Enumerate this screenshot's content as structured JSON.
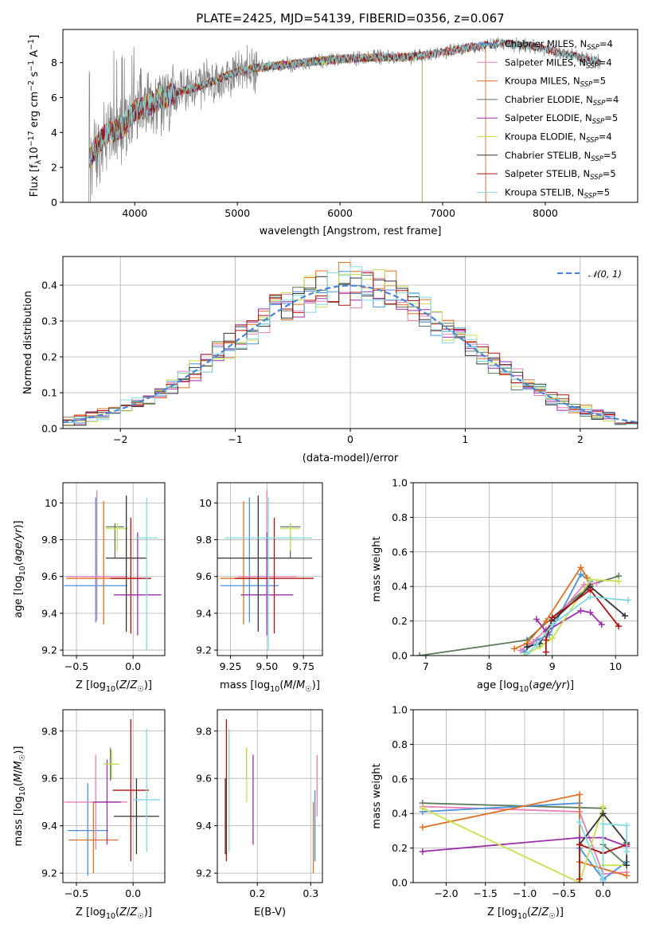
{
  "title": "PLATE=2425, MJD=54139, FIBERID=0356, z=0.067",
  "colors": {
    "chabrier_miles": "#4a90d9",
    "salpeter_miles": "#e87fb7",
    "kroupa_miles": "#e07020",
    "chabrier_elodie": "#5a7a5a",
    "salpeter_elodie": "#9a2fa8",
    "kroupa_elodie": "#c8e050",
    "chabrier_stelib": "#333333",
    "salpeter_stelib": "#b01010",
    "kroupa_stelib": "#80d8e0",
    "data": "#808080",
    "normal": "#4a86d8"
  },
  "chart_data": [
    {
      "id": "spectrum",
      "type": "line",
      "xlabel": "wavelength [Angstrom, rest frame]",
      "ylabel": "Flux [fλ10⁻¹⁷ erg cm⁻² s⁻¹ A⁻¹]",
      "xlim": [
        3300,
        8900
      ],
      "ylim": [
        0,
        9.9
      ],
      "xticks": [
        4000,
        5000,
        6000,
        7000,
        8000
      ],
      "yticks": [
        0,
        2,
        4,
        6,
        8
      ],
      "legend": [
        "Chabrier MILES, N_SSP=4",
        "Salpeter MILES, N_SSP=4",
        "Kroupa MILES, N_SSP=5",
        "Chabrier ELODIE, N_SSP=4",
        "Salpeter ELODIE, N_SSP=5",
        "Kroupa ELODIE, N_SSP=4",
        "Chabrier STELIB, N_SSP=5",
        "Salpeter STELIB, N_SSP=5",
        "Kroupa STELIB, N_SSP=5"
      ],
      "legend_position": "right",
      "continuum": [
        [
          3560,
          2.6
        ],
        [
          3700,
          3.8
        ],
        [
          3900,
          4.4
        ],
        [
          4000,
          5.2
        ],
        [
          4200,
          5.8
        ],
        [
          4400,
          6.3
        ],
        [
          4600,
          6.6
        ],
        [
          4800,
          7.0
        ],
        [
          5000,
          7.5
        ],
        [
          5200,
          7.7
        ],
        [
          5500,
          7.9
        ],
        [
          5800,
          8.1
        ],
        [
          6000,
          8.2
        ],
        [
          6300,
          8.3
        ],
        [
          6600,
          8.3
        ],
        [
          6800,
          8.4
        ],
        [
          7000,
          8.6
        ],
        [
          7200,
          8.8
        ],
        [
          7400,
          9.0
        ],
        [
          7600,
          9.1
        ],
        [
          7800,
          9.0
        ],
        [
          8000,
          8.8
        ],
        [
          8200,
          8.5
        ],
        [
          8400,
          8.2
        ],
        [
          8540,
          8.0
        ]
      ],
      "data_range": [
        3550,
        8540
      ],
      "model_range": [
        3560,
        7420
      ],
      "elodie_cutoff": 6800,
      "miles_cutoff": 7420
    },
    {
      "id": "residuals",
      "type": "line",
      "xlabel": "(data-model)/error",
      "ylabel": "Normed distribution",
      "xlim": [
        -2.5,
        2.5
      ],
      "ylim": [
        0,
        0.48
      ],
      "xticks": [
        -2,
        -1,
        0,
        1,
        2
      ],
      "xtick_labels": [
        "−2",
        "−1",
        "0",
        "1",
        "2"
      ],
      "yticks": [
        0,
        0.1,
        0.2,
        0.3,
        0.4
      ],
      "ytick_labels": [
        "0.0",
        "0.1",
        "0.2",
        "0.3",
        "0.4"
      ],
      "grid": true,
      "series": [
        {
          "name": "𝒩(0, 1)",
          "mean": 0,
          "sigma": 1
        }
      ],
      "bin_width": 0.1,
      "legend_position": "top-right"
    },
    {
      "id": "age_vs_Z",
      "type": "scatter",
      "xlabel": "Z [log10(Z/Z☉)]",
      "ylabel": "age [log10(age/yr)]",
      "xlim": [
        -0.62,
        0.28
      ],
      "ylim": [
        9.17,
        10.11
      ],
      "xticks": [
        -0.5,
        0.0
      ],
      "xtick_labels": [
        "−0.5",
        "0.0"
      ],
      "yticks": [
        9.2,
        9.4,
        9.6,
        9.8,
        10.0
      ],
      "grid": true,
      "points": [
        {
          "model": "chabrier_miles",
          "x": -0.33,
          "xerr": 0.28,
          "y": 9.55,
          "ylo": 9.35,
          "yhi": 10.03
        },
        {
          "model": "salpeter_miles",
          "x": -0.32,
          "xerr": 0.27,
          "y": 9.6,
          "ylo": 9.36,
          "yhi": 10.07
        },
        {
          "model": "kroupa_miles",
          "x": -0.26,
          "xerr": 0.33,
          "y": 9.59,
          "ylo": 9.34,
          "yhi": 10.01
        },
        {
          "model": "chabrier_elodie",
          "x": -0.16,
          "xerr": 0.08,
          "y": 9.87,
          "ylo": 9.7,
          "yhi": 9.89
        },
        {
          "model": "salpeter_elodie",
          "x": 0.04,
          "xerr": 0.21,
          "y": 9.5,
          "ylo": 9.28,
          "yhi": 9.84
        },
        {
          "model": "kroupa_elodie",
          "x": -0.14,
          "xerr": 0.1,
          "y": 9.86,
          "ylo": 9.74,
          "yhi": 9.89
        },
        {
          "model": "chabrier_stelib",
          "x": -0.06,
          "xerr": 0.18,
          "y": 9.7,
          "ylo": 9.3,
          "yhi": 10.04
        },
        {
          "model": "salpeter_stelib",
          "x": -0.02,
          "xerr": 0.18,
          "y": 9.59,
          "ylo": 9.29,
          "yhi": 9.92
        },
        {
          "model": "kroupa_stelib",
          "x": 0.12,
          "xerr": 0.1,
          "y": 9.81,
          "ylo": 9.2,
          "yhi": 10.03
        }
      ]
    },
    {
      "id": "age_vs_mass",
      "type": "scatter",
      "xlabel": "mass [log10(M/M☉)]",
      "ylabel": "",
      "xlim": [
        9.16,
        9.88
      ],
      "ylim": [
        9.17,
        10.11
      ],
      "xticks": [
        9.25,
        9.5,
        9.75
      ],
      "xtick_labels": [
        "9.25",
        "9.50",
        "9.75"
      ],
      "yticks": [
        9.2,
        9.4,
        9.6,
        9.8,
        10.0
      ],
      "grid": true,
      "points": [
        {
          "model": "chabrier_miles",
          "x": 9.38,
          "xerr": 0.2,
          "y": 9.55,
          "ylo": 9.35,
          "yhi": 10.03
        },
        {
          "model": "salpeter_miles",
          "x": 9.5,
          "xerr": 0.2,
          "y": 9.6,
          "ylo": 9.36,
          "yhi": 10.07
        },
        {
          "model": "kroupa_miles",
          "x": 9.34,
          "xerr": 0.16,
          "y": 9.59,
          "ylo": 9.34,
          "yhi": 10.01
        },
        {
          "model": "chabrier_elodie",
          "x": 9.66,
          "xerr": 0.07,
          "y": 9.87,
          "ylo": 9.7,
          "yhi": 9.89
        },
        {
          "model": "salpeter_elodie",
          "x": 9.5,
          "xerr": 0.18,
          "y": 9.5,
          "ylo": 9.28,
          "yhi": 9.84
        },
        {
          "model": "kroupa_elodie",
          "x": 9.66,
          "xerr": 0.07,
          "y": 9.86,
          "ylo": 9.74,
          "yhi": 9.89
        },
        {
          "model": "chabrier_stelib",
          "x": 9.44,
          "xerr": 0.37,
          "y": 9.7,
          "ylo": 9.3,
          "yhi": 10.04
        },
        {
          "model": "salpeter_stelib",
          "x": 9.55,
          "xerr": 0.27,
          "y": 9.59,
          "ylo": 9.29,
          "yhi": 9.92
        },
        {
          "model": "kroupa_stelib",
          "x": 9.51,
          "xerr": 0.3,
          "y": 9.81,
          "ylo": 9.2,
          "yhi": 10.03
        }
      ]
    },
    {
      "id": "weight_vs_age",
      "type": "line",
      "xlabel": "age [log10(age/yr)]",
      "ylabel": "mass weight",
      "xlim": [
        6.8,
        10.35
      ],
      "ylim": [
        0,
        1
      ],
      "xticks": [
        7,
        8,
        9,
        10
      ],
      "yticks": [
        0,
        0.2,
        0.4,
        0.6,
        0.8,
        1.0
      ],
      "ytick_labels": [
        "0.0",
        "0.2",
        "0.4",
        "0.6",
        "0.8",
        "1.0"
      ],
      "grid": true,
      "series": [
        {
          "model": "chabrier_elodie",
          "x": [
            6.9,
            8.6,
            9.0,
            9.6,
            10.05
          ],
          "y": [
            0.0,
            0.09,
            0.22,
            0.41,
            0.46
          ]
        },
        {
          "model": "chabrier_miles",
          "x": [
            8.55,
            8.75,
            8.95,
            9.45,
            9.6
          ],
          "y": [
            0.02,
            0.09,
            0.12,
            0.47,
            0.43
          ]
        },
        {
          "model": "salpeter_miles",
          "x": [
            8.5,
            8.7,
            8.9,
            9.5,
            9.7
          ],
          "y": [
            0.03,
            0.08,
            0.15,
            0.41,
            0.42
          ]
        },
        {
          "model": "kroupa_miles",
          "x": [
            8.4,
            8.6,
            8.9,
            9.45,
            9.55
          ],
          "y": [
            0.04,
            0.07,
            0.2,
            0.51,
            0.45
          ]
        },
        {
          "model": "salpeter_elodie",
          "x": [
            8.75,
            8.9,
            9.45,
            9.6,
            9.78
          ],
          "y": [
            0.21,
            0.14,
            0.26,
            0.25,
            0.18
          ]
        },
        {
          "model": "kroupa_elodie",
          "x": [
            8.55,
            8.8,
            9.0,
            9.6,
            10.05
          ],
          "y": [
            0.0,
            0.05,
            0.1,
            0.44,
            0.43
          ]
        },
        {
          "model": "chabrier_stelib",
          "x": [
            8.6,
            8.8,
            9.0,
            9.6,
            10.15
          ],
          "y": [
            0.05,
            0.07,
            0.2,
            0.4,
            0.23
          ]
        },
        {
          "model": "salpeter_stelib",
          "x": [
            8.9,
            8.9,
            9.0,
            9.6,
            10.05
          ],
          "y": [
            0.02,
            0.09,
            0.22,
            0.38,
            0.17
          ]
        },
        {
          "model": "kroupa_stelib",
          "x": [
            8.6,
            8.75,
            9.0,
            9.6,
            10.2
          ],
          "y": [
            0.01,
            0.06,
            0.18,
            0.34,
            0.32
          ]
        }
      ]
    },
    {
      "id": "mass_vs_Z",
      "type": "scatter",
      "xlabel": "Z [log10(Z/Z☉)]",
      "ylabel": "mass [log10(M/M☉)]",
      "xlim": [
        -0.62,
        0.28
      ],
      "ylim": [
        9.16,
        9.89
      ],
      "xticks": [
        -0.5,
        0.0
      ],
      "xtick_labels": [
        "−0.5",
        "0.0"
      ],
      "yticks": [
        9.2,
        9.4,
        9.6,
        9.8
      ],
      "grid": true,
      "points": [
        {
          "model": "chabrier_miles",
          "x": -0.4,
          "xerr": 0.18,
          "y": 9.38,
          "ylo": 9.19,
          "yhi": 9.58
        },
        {
          "model": "salpeter_miles",
          "x": -0.33,
          "xerr": 0.28,
          "y": 9.5,
          "ylo": 9.3,
          "yhi": 9.7
        },
        {
          "model": "kroupa_miles",
          "x": -0.35,
          "xerr": 0.22,
          "y": 9.34,
          "ylo": 9.2,
          "yhi": 9.5
        },
        {
          "model": "chabrier_elodie",
          "x": -0.2,
          "xerr": 0.06,
          "y": 9.66,
          "ylo": 9.59,
          "yhi": 9.73
        },
        {
          "model": "salpeter_elodie",
          "x": -0.23,
          "xerr": 0.12,
          "y": 9.5,
          "ylo": 9.32,
          "yhi": 9.68
        },
        {
          "model": "kroupa_elodie",
          "x": -0.19,
          "xerr": 0.07,
          "y": 9.66,
          "ylo": 9.6,
          "yhi": 9.72
        },
        {
          "model": "chabrier_stelib",
          "x": 0.03,
          "xerr": 0.2,
          "y": 9.44,
          "ylo": 9.28,
          "yhi": 9.6
        },
        {
          "model": "salpeter_stelib",
          "x": -0.02,
          "xerr": 0.16,
          "y": 9.55,
          "ylo": 9.25,
          "yhi": 9.85
        },
        {
          "model": "kroupa_stelib",
          "x": 0.12,
          "xerr": 0.12,
          "y": 9.51,
          "ylo": 9.29,
          "yhi": 9.81
        }
      ]
    },
    {
      "id": "mass_vs_ebv",
      "type": "scatter",
      "xlabel": "E(B-V)",
      "ylabel": "",
      "xlim": [
        0.125,
        0.322
      ],
      "ylim": [
        9.16,
        9.89
      ],
      "xticks": [
        0.2,
        0.3
      ],
      "xtick_labels": [
        "0.2",
        "0.3"
      ],
      "yticks": [
        9.2,
        9.4,
        9.6,
        9.8
      ],
      "grid": true,
      "points": [
        {
          "model": "chabrier_miles",
          "x": 0.308,
          "ylo": 9.25,
          "yhi": 9.55
        },
        {
          "model": "salpeter_miles",
          "x": 0.312,
          "ylo": 9.44,
          "yhi": 9.7
        },
        {
          "model": "kroupa_miles",
          "x": 0.305,
          "ylo": 9.2,
          "yhi": 9.5
        },
        {
          "model": "chabrier_elodie",
          "x": 0.18,
          "ylo": 9.6,
          "yhi": 9.73
        },
        {
          "model": "salpeter_elodie",
          "x": 0.192,
          "ylo": 9.32,
          "yhi": 9.7
        },
        {
          "model": "kroupa_elodie",
          "x": 0.18,
          "ylo": 9.5,
          "yhi": 9.73
        },
        {
          "model": "chabrier_stelib",
          "x": 0.14,
          "ylo": 9.28,
          "yhi": 9.6
        },
        {
          "model": "salpeter_stelib",
          "x": 0.142,
          "ylo": 9.25,
          "yhi": 9.85
        },
        {
          "model": "kroupa_stelib",
          "x": 0.147,
          "ylo": 9.29,
          "yhi": 9.81
        }
      ]
    },
    {
      "id": "weight_vs_Z",
      "type": "line",
      "xlabel": "Z [log10(Z/Z☉)]",
      "ylabel": "mass weight",
      "xlim": [
        -2.42,
        0.44
      ],
      "ylim": [
        0,
        1
      ],
      "xticks": [
        -2.0,
        -1.5,
        -1.0,
        -0.5,
        0.0
      ],
      "xtick_labels": [
        "−2.0",
        "−1.5",
        "−1.0",
        "−0.5",
        "0.0"
      ],
      "yticks": [
        0,
        0.2,
        0.4,
        0.6,
        0.8,
        1.0
      ],
      "ytick_labels": [
        "0.0",
        "0.2",
        "0.4",
        "0.6",
        "0.8",
        "1.0"
      ],
      "grid": true,
      "series": [
        {
          "model": "chabrier_elodie",
          "x": [
            -2.3,
            0.0,
            0.0,
            0.3
          ],
          "y": [
            0.46,
            0.43,
            0.22,
            0.1
          ]
        },
        {
          "model": "salpeter_miles",
          "x": [
            -2.3,
            -0.3,
            0.0,
            0.3
          ],
          "y": [
            0.44,
            0.41,
            0.05,
            0.06
          ]
        },
        {
          "model": "chabrier_miles",
          "x": [
            -2.3,
            -0.3,
            -0.3,
            0.0,
            0.3
          ],
          "y": [
            0.41,
            0.46,
            0.2,
            0.02,
            0.12
          ]
        },
        {
          "model": "kroupa_miles",
          "x": [
            -2.3,
            -0.3,
            -0.3,
            0.3
          ],
          "y": [
            0.32,
            0.51,
            0.12,
            0.04
          ]
        },
        {
          "model": "salpeter_elodie",
          "x": [
            -2.3,
            -0.3,
            0.0,
            0.3
          ],
          "y": [
            0.18,
            0.26,
            0.26,
            0.21
          ]
        },
        {
          "model": "kroupa_elodie",
          "x": [
            -2.3,
            -0.3,
            0.0,
            0.0,
            0.3
          ],
          "y": [
            0.43,
            0.0,
            0.44,
            0.1,
            0.1
          ]
        },
        {
          "model": "chabrier_stelib",
          "x": [
            -0.3,
            0.0,
            0.3,
            0.3
          ],
          "y": [
            0.22,
            0.4,
            0.23,
            0.1
          ]
        },
        {
          "model": "salpeter_stelib",
          "x": [
            -0.3,
            -0.3,
            0.0,
            0.3
          ],
          "y": [
            0.02,
            0.22,
            0.17,
            0.22
          ]
        },
        {
          "model": "kroupa_stelib",
          "x": [
            -0.3,
            0.0,
            0.0,
            0.3,
            0.3
          ],
          "y": [
            0.35,
            0.01,
            0.34,
            0.33,
            0.18
          ]
        }
      ]
    }
  ]
}
